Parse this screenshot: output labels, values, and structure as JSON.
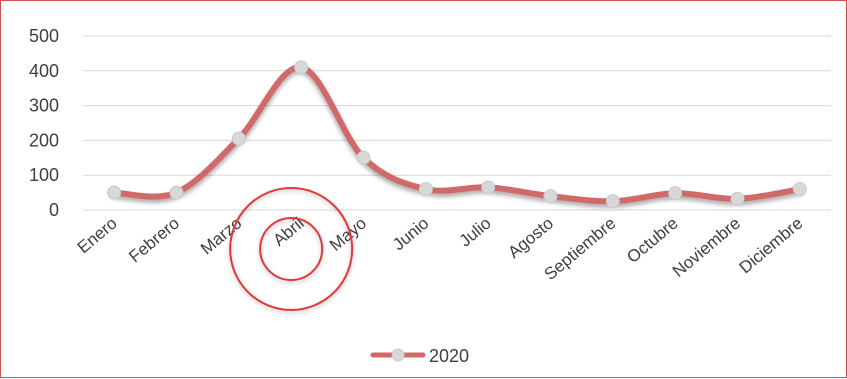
{
  "chart_data": {
    "type": "line",
    "categories": [
      "Enero",
      "Febrero",
      "Marzo",
      "Abril",
      "Mayo",
      "Junio",
      "Julio",
      "Agosto",
      "Septiembre",
      "Octubre",
      "Noviembre",
      "Diciembre"
    ],
    "series": [
      {
        "name": "2020",
        "values": [
          50,
          50,
          205,
          410,
          150,
          60,
          65,
          40,
          25,
          48,
          32,
          60
        ]
      }
    ],
    "yticks": [
      "0",
      "100",
      "200",
      "300",
      "400",
      "500"
    ],
    "ylim": [
      0,
      500
    ],
    "grid": true,
    "legend": "bottom",
    "highlighted_category": "Abril",
    "colors": {
      "line": "#d06a6a",
      "marker": "#d8d8d8",
      "grid": "#d9d9d9",
      "highlight_circle": "#e03b3b",
      "frame": "#d05050"
    }
  }
}
